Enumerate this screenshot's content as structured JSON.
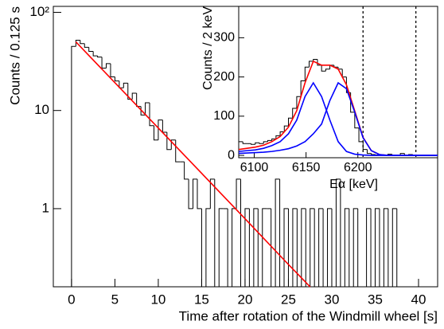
{
  "chart_data": [
    {
      "type": "histogram",
      "ylabel": "Counts / 0.125 s",
      "xlabel": "Time after rotation of the Windmill wheel [s]",
      "bins": [
        0,
        0.5,
        1,
        1.5,
        2,
        2.5,
        3,
        3.5,
        4,
        4.5,
        5,
        5.5,
        6,
        6.5,
        7,
        7.5,
        8,
        8.5,
        9,
        9.5,
        10,
        10.5,
        11,
        11.5,
        12,
        12.5,
        13,
        13.5,
        14,
        14.5,
        15,
        15.5,
        16,
        16.5,
        17,
        17.5,
        18,
        18.5,
        19,
        19.5,
        20,
        20.5,
        21,
        21.5,
        22,
        22.5,
        23,
        23.5,
        24,
        24.5,
        25,
        25.5,
        26,
        26.5,
        27,
        27.5,
        28,
        28.5,
        29,
        29.5,
        30,
        30.5,
        31,
        31.5,
        32,
        32.5,
        33,
        33.5,
        34,
        34.5,
        35,
        35.5,
        36,
        36.5,
        37,
        37.5,
        38,
        38.5,
        39,
        39.5,
        40
      ],
      "values": [
        45,
        52,
        48,
        44,
        40,
        36,
        35,
        27,
        30,
        22,
        20,
        17,
        19,
        13,
        15,
        11,
        9,
        12,
        7,
        5,
        8,
        6,
        4,
        5,
        3,
        3,
        2,
        1,
        2,
        1,
        0,
        1,
        2,
        0,
        1,
        1,
        0,
        1,
        2,
        0,
        1,
        0,
        1,
        0,
        1,
        1,
        0,
        2,
        0,
        1,
        0,
        1,
        0,
        1,
        0,
        1,
        0,
        1,
        0,
        1,
        0,
        2,
        0,
        1,
        0,
        1,
        0,
        0,
        1,
        0,
        1,
        0,
        1,
        0,
        1,
        0,
        0,
        0,
        0,
        0
      ],
      "color": "#000000",
      "xlim": [
        -2.1,
        42.2
      ],
      "ylim": [
        0.16,
        115
      ],
      "log_y": true,
      "xticks": [
        0,
        5,
        10,
        15,
        20,
        25,
        30,
        35,
        40
      ],
      "yticks": [
        1,
        10,
        {
          "value": 100,
          "label": "10²"
        }
      ],
      "fit": {
        "color": "#ff0000",
        "x": [
          0.5,
          5,
          10,
          15,
          20,
          25,
          27.5
        ],
        "values": [
          50,
          19.2,
          6.63,
          2.29,
          0.79,
          0.27,
          0.16
        ]
      }
    },
    {
      "type": "histogram",
      "ylabel": "Counts / 2 keV",
      "xlabel": "Eα [keV]",
      "bins": [
        6085,
        6089,
        6093,
        6097,
        6101,
        6105,
        6109,
        6113,
        6117,
        6121,
        6125,
        6129,
        6133,
        6137,
        6141,
        6145,
        6149,
        6153,
        6157,
        6161,
        6165,
        6169,
        6173,
        6177,
        6181,
        6185,
        6189,
        6193,
        6197,
        6201,
        6205,
        6209,
        6213,
        6217,
        6221,
        6225,
        6229,
        6233,
        6237,
        6241,
        6245,
        6249,
        6253,
        6257,
        6261,
        6265,
        6269,
        6273,
        6277
      ],
      "values": [
        35,
        30,
        30,
        28,
        32,
        30,
        35,
        38,
        42,
        50,
        60,
        75,
        95,
        120,
        150,
        190,
        225,
        240,
        245,
        230,
        215,
        220,
        230,
        225,
        220,
        200,
        160,
        110,
        70,
        35,
        15,
        5,
        2,
        1,
        0,
        0,
        3,
        0,
        0,
        5,
        0,
        2,
        0,
        0,
        0,
        0,
        0,
        0
      ],
      "color": "#000000",
      "xlim": [
        6085,
        6277
      ],
      "ylim": [
        -6,
        380
      ],
      "log_y": false,
      "xticks": [
        6100,
        6150,
        6200
      ],
      "yticks": [
        0,
        100,
        200,
        300
      ],
      "vlines": [
        6205,
        6256
      ],
      "fit_x": [
        6085,
        6093,
        6101,
        6109,
        6117,
        6125,
        6133,
        6141,
        6149,
        6157,
        6165,
        6173,
        6181,
        6189,
        6197,
        6205,
        6213,
        6221,
        6229,
        6237,
        6245,
        6253,
        6261,
        6269,
        6277
      ],
      "fits": [
        {
          "color": "#ff0000",
          "values": [
            15,
            18,
            21,
            26,
            35,
            48,
            72,
            114,
            185,
            240,
            230,
            230,
            220,
            180,
            113,
            46,
            12,
            2,
            0,
            0,
            0,
            0,
            0,
            0,
            0
          ]
        },
        {
          "color": "#0000ff",
          "values": [
            10,
            12,
            14,
            18,
            25,
            35,
            55,
            90,
            150,
            185,
            150,
            90,
            35,
            10,
            3,
            1,
            0,
            0,
            0,
            0,
            0,
            0,
            0,
            0,
            0
          ]
        },
        {
          "color": "#0000ff",
          "values": [
            5,
            6,
            7,
            8,
            10,
            13,
            17,
            24,
            35,
            55,
            80,
            140,
            185,
            170,
            110,
            45,
            12,
            2,
            0,
            0,
            0,
            0,
            0,
            0,
            0
          ]
        }
      ]
    }
  ]
}
